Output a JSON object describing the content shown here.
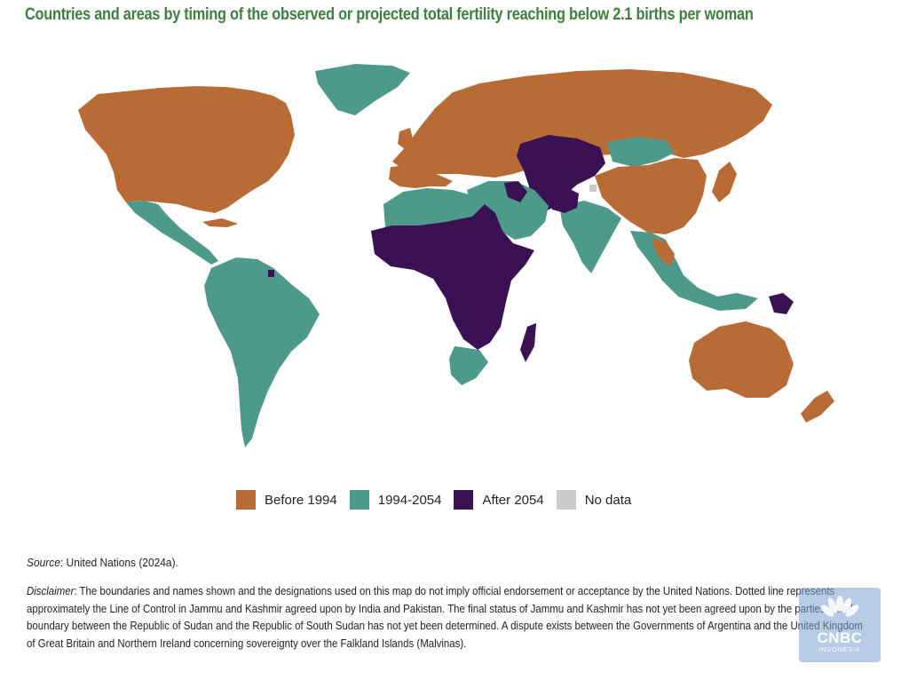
{
  "title": "Countries and areas by timing of the observed or projected total fertility reaching below 2.1 births per woman",
  "legend": [
    {
      "label": "Before 1994",
      "color": "#b86b35"
    },
    {
      "label": "1994-2054",
      "color": "#4e9a8a"
    },
    {
      "label": "After 2054",
      "color": "#3a1253"
    },
    {
      "label": "No data",
      "color": "#cccccc"
    }
  ],
  "source": {
    "label": "Source",
    "text": ": United Nations (2024a)."
  },
  "disclaimer": {
    "label": "Disclaimer",
    "text": ": The boundaries and names shown and the designations used on this map do not imply official endorsement or acceptance by the United Nations. Dotted line represents approximately the Line of Control in Jammu and Kashmir agreed upon by India and Pakistan. The final status of Jammu and Kashmir has not yet been agreed upon by the parties. Final boundary between the Republic of Sudan and the Republic of South Sudan has not yet been determined. A dispute exists between the Governments of Argentina and the United Kingdom of Great Britain and Northern Ireland concerning sovereignty over the Falkland Islands (Malvinas)."
  },
  "logo": {
    "line1": "CNBC",
    "line2": "INDONESIA"
  }
}
